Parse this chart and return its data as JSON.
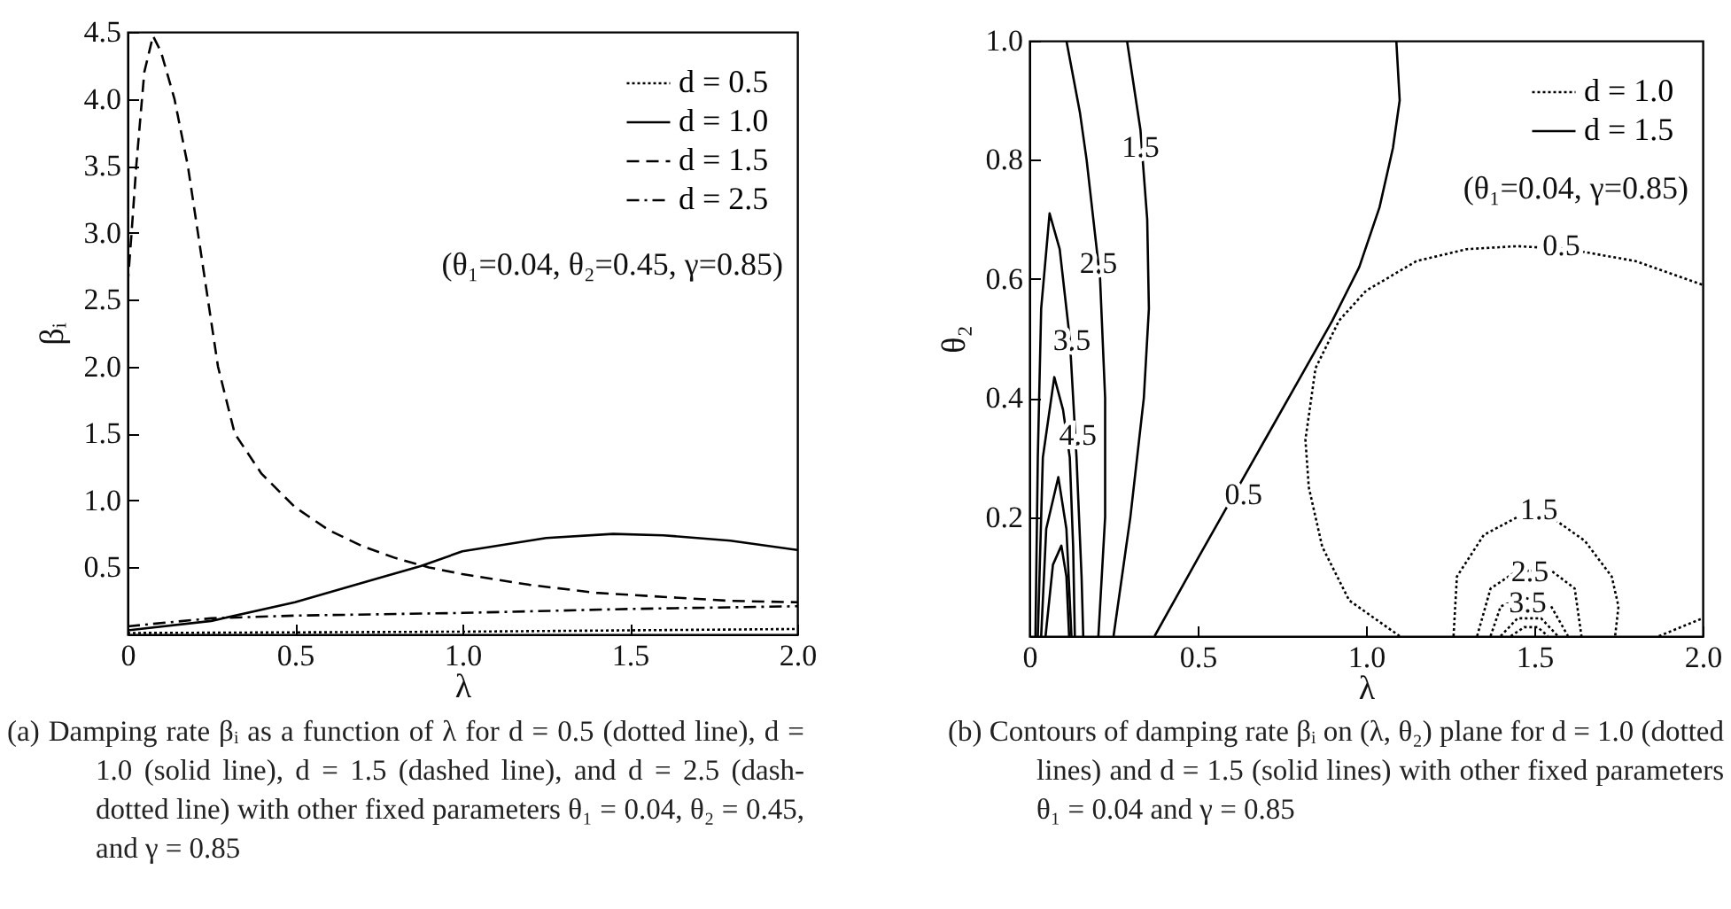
{
  "chart_data": [
    {
      "type": "line",
      "xlabel": "λ",
      "ylabel": "βᵢ",
      "xlim": [
        0,
        2
      ],
      "ylim": [
        0,
        4.5
      ],
      "xticks": [
        {
          "value": 0,
          "label": "0"
        },
        {
          "value": 0.5,
          "label": "0.5"
        },
        {
          "value": 1,
          "label": "1.0"
        },
        {
          "value": 1.5,
          "label": "1.5"
        },
        {
          "value": 2,
          "label": "2.0"
        }
      ],
      "yticks": [
        {
          "value": 0.5,
          "label": "0.5"
        },
        {
          "value": 1,
          "label": "1.0"
        },
        {
          "value": 1.5,
          "label": "1.5"
        },
        {
          "value": 2,
          "label": "2.0"
        },
        {
          "value": 2.5,
          "label": "2.5"
        },
        {
          "value": 3,
          "label": "3.0"
        },
        {
          "value": 3.5,
          "label": "3.5"
        },
        {
          "value": 4,
          "label": "4.0"
        },
        {
          "value": 4.5,
          "label": "4.5"
        }
      ],
      "legend": "top right",
      "grid": false,
      "series": [
        {
          "name": "d = 0.5",
          "color": "#000000",
          "line_style": "dotted",
          "x": [
            0,
            1,
            2
          ],
          "values": [
            0.01,
            0.02,
            0.04
          ]
        },
        {
          "name": "d = 1.0",
          "color": "#000000",
          "line_style": "solid",
          "x": [
            0,
            0.25,
            0.5,
            0.75,
            0.875,
            1,
            1.25,
            1.45,
            1.6,
            1.8,
            2
          ],
          "values": [
            0.03,
            0.1,
            0.24,
            0.42,
            0.51,
            0.62,
            0.72,
            0.75,
            0.74,
            0.7,
            0.63
          ]
        },
        {
          "name": "d = 1.5",
          "color": "#000000",
          "line_style": "dashed",
          "x": [
            0,
            0.012,
            0.026,
            0.05,
            0.076,
            0.1,
            0.14,
            0.18,
            0.21,
            0.24,
            0.27,
            0.32,
            0.4,
            0.5,
            0.6,
            0.7,
            0.8,
            0.9,
            1,
            1.2,
            1.4,
            1.6,
            1.8,
            2
          ],
          "values": [
            2.6,
            3,
            3.5,
            4.2,
            4.47,
            4.35,
            4,
            3.5,
            3,
            2.5,
            2,
            1.5,
            1.2,
            0.95,
            0.78,
            0.66,
            0.57,
            0.5,
            0.45,
            0.37,
            0.31,
            0.28,
            0.25,
            0.24
          ]
        },
        {
          "name": "d = 2.5",
          "color": "#000000",
          "line_style": "dashdot",
          "x": [
            0,
            0.25,
            0.5,
            1,
            1.5,
            2
          ],
          "values": [
            0.06,
            0.12,
            0.14,
            0.16,
            0.19,
            0.21
          ]
        }
      ],
      "annotations": [
        "(θ₁=0.04, θ₂=0.45, γ=0.85)",
        "(a) Damping rate βᵢ as a function of λ for d = 0.5 (dotted line), d = 1.0 (solid line), d = 1.5 (dashed line), and d = 2.5 (dash-dotted line) with other fixed parameters θ₁ = 0.04, θ₂ = 0.45, and γ = 0.85"
      ]
    },
    {
      "type": "line",
      "xlabel": "λ",
      "ylabel": "θ₂",
      "xlim": [
        0,
        2
      ],
      "ylim": [
        0,
        1
      ],
      "xticks": [
        {
          "value": 0,
          "label": "0"
        },
        {
          "value": 0.5,
          "label": "0.5"
        },
        {
          "value": 1,
          "label": "1.0"
        },
        {
          "value": 1.5,
          "label": "1.5"
        },
        {
          "value": 2,
          "label": "2.0"
        }
      ],
      "yticks": [
        {
          "value": 0.2,
          "label": "0.2"
        },
        {
          "value": 0.4,
          "label": "0.4"
        },
        {
          "value": 0.6,
          "label": "0.6"
        },
        {
          "value": 0.8,
          "label": "0.8"
        },
        {
          "value": 1,
          "label": "1.0"
        }
      ],
      "legend": "top right",
      "grid": false,
      "series": [
        {
          "name": "d = 1.0",
          "color": "#000000",
          "line_style": "dotted",
          "x": [
            1.1,
            0.95,
            0.87,
            0.83,
            0.82,
            0.85,
            0.92,
            1,
            1.15,
            1.3,
            1.45,
            1.6,
            1.8,
            2
          ],
          "values": [
            0,
            0.06,
            0.15,
            0.25,
            0.33,
            0.45,
            0.53,
            0.58,
            0.63,
            0.65,
            0.655,
            0.65,
            0.63,
            0.59
          ]
        },
        {
          "color": "#000000",
          "line_style": "dotted",
          "x": [
            1.87,
            2
          ],
          "values": [
            0,
            0.03
          ]
        },
        {
          "color": "#000000",
          "line_style": "dotted",
          "x": [
            1.26,
            1.27,
            1.35,
            1.45,
            1.55,
            1.65,
            1.73,
            1.75,
            1.74
          ],
          "values": [
            0,
            0.1,
            0.17,
            0.2,
            0.2,
            0.16,
            0.1,
            0.05,
            0
          ]
        },
        {
          "color": "#000000",
          "line_style": "dotted",
          "x": [
            1.33,
            1.37,
            1.45,
            1.55,
            1.62,
            1.64
          ],
          "values": [
            0,
            0.08,
            0.11,
            0.11,
            0.08,
            0
          ]
        },
        {
          "color": "#000000",
          "line_style": "dotted",
          "x": [
            1.37,
            1.4,
            1.47,
            1.55,
            1.6
          ],
          "values": [
            0,
            0.05,
            0.065,
            0.05,
            0
          ]
        },
        {
          "color": "#000000",
          "line_style": "dotted",
          "x": [
            1.4,
            1.45,
            1.52,
            1.57
          ],
          "values": [
            0,
            0.03,
            0.03,
            0
          ]
        },
        {
          "color": "#000000",
          "line_style": "dotted",
          "x": [
            1.43,
            1.47,
            1.51,
            1.54
          ],
          "values": [
            0,
            0.015,
            0.015,
            0
          ]
        },
        {
          "name": "d = 1.5",
          "color": "#000000",
          "line_style": "solid",
          "x": [
            0.372,
            0.5,
            0.6,
            0.7,
            0.8,
            0.9,
            0.98,
            1.04,
            1.08,
            1.1,
            1.09
          ],
          "values": [
            0,
            0.13,
            0.23,
            0.33,
            0.43,
            0.53,
            0.62,
            0.72,
            0.82,
            0.9,
            1
          ]
        },
        {
          "color": "#000000",
          "line_style": "solid",
          "x": [
            0.25,
            0.3,
            0.34,
            0.355,
            0.35,
            0.33,
            0.29
          ],
          "values": [
            0,
            0.2,
            0.4,
            0.55,
            0.7,
            0.85,
            1
          ]
        },
        {
          "color": "#000000",
          "line_style": "solid",
          "x": [
            0.205,
            0.225,
            0.225,
            0.21,
            0.17,
            0.15,
            0.11
          ],
          "values": [
            0,
            0.2,
            0.4,
            0.6,
            0.8,
            0.88,
            1
          ]
        },
        {
          "color": "#000000",
          "line_style": "solid",
          "x": [
            0.018,
            0.025,
            0.035,
            0.06,
            0.09,
            0.12,
            0.14,
            0.155,
            0.16
          ],
          "values": [
            0,
            0.3,
            0.55,
            0.71,
            0.65,
            0.5,
            0.3,
            0.1,
            0
          ]
        },
        {
          "color": "#000000",
          "line_style": "solid",
          "x": [
            0.025,
            0.04,
            0.074,
            0.1,
            0.12,
            0.13,
            0.135
          ],
          "values": [
            0,
            0.3,
            0.435,
            0.38,
            0.3,
            0.15,
            0
          ]
        },
        {
          "color": "#000000",
          "line_style": "solid",
          "x": [
            0.035,
            0.05,
            0.086,
            0.11,
            0.125
          ],
          "values": [
            0,
            0.18,
            0.267,
            0.18,
            0
          ]
        },
        {
          "color": "#000000",
          "line_style": "solid",
          "x": [
            0.048,
            0.07,
            0.095,
            0.11,
            0.118
          ],
          "values": [
            0,
            0.12,
            0.152,
            0.1,
            0
          ]
        }
      ],
      "annotations": [
        "(θ₁=0.04, γ=0.85)",
        "(b) Contours of damping rate βᵢ on (λ, θ₂) plane for d = 1.0 (dotted lines) and d = 1.5 (solid lines) with other fixed parameters θ₁ = 0.04 and γ = 0.85",
        {
          "text": "0.5",
          "x": 0.636,
          "y": 0.237
        },
        {
          "text": "1.5",
          "x": 0.33,
          "y": 0.82
        },
        {
          "text": "2.5",
          "x": 0.205,
          "y": 0.625
        },
        {
          "text": "3.5",
          "x": 0.126,
          "y": 0.495
        },
        {
          "text": "4.5",
          "x": 0.144,
          "y": 0.336
        },
        {
          "text": "0.5",
          "x": 1.58,
          "y": 0.655
        },
        {
          "text": "1.5",
          "x": 1.514,
          "y": 0.212
        },
        {
          "text": "2.5",
          "x": 1.487,
          "y": 0.107
        },
        {
          "text": "3.5",
          "x": 1.48,
          "y": 0.055
        }
      ]
    }
  ]
}
